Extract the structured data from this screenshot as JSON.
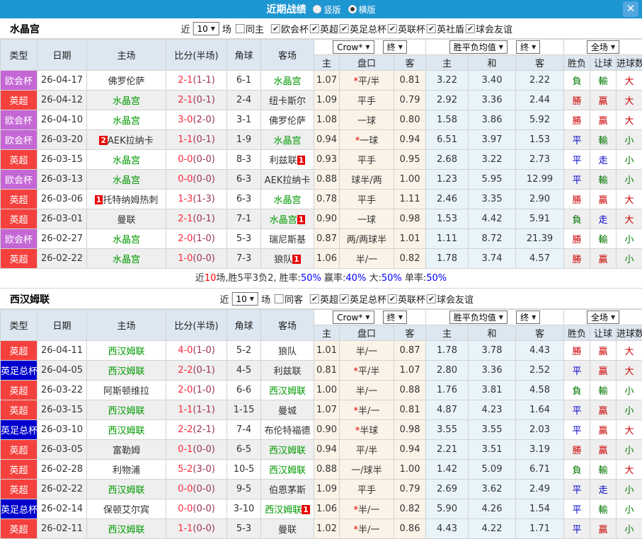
{
  "titlebar": {
    "title": "近期战绩",
    "radio_vertical": "竖版",
    "radio_horizontal": "横版"
  },
  "glyphs": {
    "dd_arrow": "▼",
    "check": "✔",
    "close": "✕"
  },
  "colors": {
    "accent_bar": "#1e96d2",
    "type": {
      "purple": "#c566d5",
      "red": "#f5413d",
      "blue": "#0101cd"
    },
    "result": {
      "r": "#cc0000",
      "g": "#007700",
      "b": "#0000cc"
    },
    "team_green": "#009900",
    "score_ft": "#fd2a3c",
    "score_ht": "#993355"
  },
  "table_header": {
    "col_type": "类型",
    "col_date": "日期",
    "col_home": "主场",
    "col_score": "比分(半场)",
    "col_corner": "角球",
    "col_away": "客场",
    "dd_crow": "Crow*",
    "dd_final1": "终",
    "dd_avg": "胜平负均值",
    "dd_final2": "终",
    "dd_fulltime": "全场",
    "sub_home": "主",
    "sub_handicap": "盘口",
    "sub_away": "客",
    "sub_ehome": "主",
    "sub_draw": "和",
    "sub_eaway": "客",
    "col_result": "胜负",
    "col_handicap_result": "让球",
    "col_goals": "进球数"
  },
  "sections": [
    {
      "team": "水晶宫",
      "filter": {
        "near": "近",
        "count": "10",
        "games": "场",
        "same": "同主",
        "same_checked": false,
        "leagues": [
          "欧会杯",
          "英超",
          "英足总杯",
          "英联杯",
          "英社盾",
          "球会友谊"
        ]
      },
      "rows": [
        {
          "type": "欧会杯",
          "tc": "purple",
          "date": "26-04-17",
          "home": {
            "name": "佛罗伦萨",
            "green": false,
            "badge": ""
          },
          "ft": "2-1",
          "ht": "(1-1)",
          "corner": "6-1",
          "away": {
            "name": "水晶宫",
            "green": true,
            "badge": ""
          },
          "asian": [
            "1.07",
            "*平/半",
            "0.81"
          ],
          "euro": [
            "3.22",
            "3.40",
            "2.22"
          ],
          "results": [
            [
              "負",
              "g"
            ],
            [
              "輸",
              "g"
            ],
            [
              "大",
              "r"
            ]
          ]
        },
        {
          "type": "英超",
          "tc": "red",
          "date": "26-04-12",
          "home": {
            "name": "水晶宫",
            "green": true,
            "badge": ""
          },
          "ft": "2-1",
          "ht": "(0-1)",
          "corner": "2-4",
          "away": {
            "name": "纽卡斯尔",
            "green": false,
            "badge": ""
          },
          "asian": [
            "1.09",
            "平手",
            "0.79"
          ],
          "euro": [
            "2.92",
            "3.36",
            "2.44"
          ],
          "results": [
            [
              "勝",
              "r"
            ],
            [
              "贏",
              "r"
            ],
            [
              "大",
              "r"
            ]
          ]
        },
        {
          "type": "欧会杯",
          "tc": "purple",
          "date": "26-04-10",
          "home": {
            "name": "水晶宫",
            "green": true,
            "badge": ""
          },
          "ft": "3-0",
          "ht": "(2-0)",
          "corner": "3-1",
          "away": {
            "name": "佛罗伦萨",
            "green": false,
            "badge": ""
          },
          "asian": [
            "1.08",
            "一球",
            "0.80"
          ],
          "euro": [
            "1.58",
            "3.86",
            "5.92"
          ],
          "results": [
            [
              "勝",
              "r"
            ],
            [
              "贏",
              "r"
            ],
            [
              "大",
              "r"
            ]
          ]
        },
        {
          "type": "欧会杯",
          "tc": "purple",
          "date": "26-03-20",
          "home": {
            "name": "AEK拉纳卡",
            "green": false,
            "badge": "2"
          },
          "ft": "1-1",
          "ht": "(0-1)",
          "corner": "1-9",
          "away": {
            "name": "水晶宫",
            "green": true,
            "badge": ""
          },
          "asian": [
            "0.94",
            "*一球",
            "0.94"
          ],
          "euro": [
            "6.51",
            "3.97",
            "1.53"
          ],
          "results": [
            [
              "平",
              "b"
            ],
            [
              "輸",
              "g"
            ],
            [
              "小",
              "g"
            ]
          ]
        },
        {
          "type": "英超",
          "tc": "red",
          "date": "26-03-15",
          "home": {
            "name": "水晶宫",
            "green": true,
            "badge": ""
          },
          "ft": "0-0",
          "ht": "(0-0)",
          "corner": "8-3",
          "away": {
            "name": "利兹联",
            "green": false,
            "badge": "1"
          },
          "asian": [
            "0.93",
            "平手",
            "0.95"
          ],
          "euro": [
            "2.68",
            "3.22",
            "2.73"
          ],
          "results": [
            [
              "平",
              "b"
            ],
            [
              "走",
              "b"
            ],
            [
              "小",
              "g"
            ]
          ]
        },
        {
          "type": "欧会杯",
          "tc": "purple",
          "date": "26-03-13",
          "home": {
            "name": "水晶宫",
            "green": true,
            "badge": ""
          },
          "ft": "0-0",
          "ht": "(0-0)",
          "corner": "6-3",
          "away": {
            "name": "AEK拉纳卡",
            "green": false,
            "badge": ""
          },
          "asian": [
            "0.88",
            "球半/两",
            "1.00"
          ],
          "euro": [
            "1.23",
            "5.95",
            "12.99"
          ],
          "results": [
            [
              "平",
              "b"
            ],
            [
              "輸",
              "g"
            ],
            [
              "小",
              "g"
            ]
          ]
        },
        {
          "type": "英超",
          "tc": "red",
          "date": "26-03-06",
          "home": {
            "name": "托特纳姆热刺",
            "green": false,
            "badge": "1"
          },
          "ft": "1-3",
          "ht": "(1-3)",
          "corner": "6-3",
          "away": {
            "name": "水晶宫",
            "green": true,
            "badge": ""
          },
          "asian": [
            "0.78",
            "平手",
            "1.11"
          ],
          "euro": [
            "2.46",
            "3.35",
            "2.90"
          ],
          "results": [
            [
              "勝",
              "r"
            ],
            [
              "贏",
              "r"
            ],
            [
              "大",
              "r"
            ]
          ]
        },
        {
          "type": "英超",
          "tc": "red",
          "date": "26-03-01",
          "home": {
            "name": "曼联",
            "green": false,
            "badge": ""
          },
          "ft": "2-1",
          "ht": "(0-1)",
          "corner": "7-1",
          "away": {
            "name": "水晶宫",
            "green": true,
            "badge": "1"
          },
          "asian": [
            "0.90",
            "一球",
            "0.98"
          ],
          "euro": [
            "1.53",
            "4.42",
            "5.91"
          ],
          "results": [
            [
              "負",
              "g"
            ],
            [
              "走",
              "b"
            ],
            [
              "大",
              "r"
            ]
          ]
        },
        {
          "type": "欧会杯",
          "tc": "purple",
          "date": "26-02-27",
          "home": {
            "name": "水晶宫",
            "green": true,
            "badge": ""
          },
          "ft": "2-0",
          "ht": "(1-0)",
          "corner": "5-3",
          "away": {
            "name": "瑞尼斯基",
            "green": false,
            "badge": ""
          },
          "asian": [
            "0.87",
            "两/两球半",
            "1.01"
          ],
          "euro": [
            "1.11",
            "8.72",
            "21.39"
          ],
          "results": [
            [
              "勝",
              "r"
            ],
            [
              "輸",
              "g"
            ],
            [
              "小",
              "g"
            ]
          ]
        },
        {
          "type": "英超",
          "tc": "red",
          "date": "26-02-22",
          "home": {
            "name": "水晶宫",
            "green": true,
            "badge": ""
          },
          "ft": "1-0",
          "ht": "(0-0)",
          "corner": "7-3",
          "away": {
            "name": "狼队",
            "green": false,
            "badge": "1"
          },
          "asian": [
            "1.06",
            "半/一",
            "0.82"
          ],
          "euro": [
            "1.78",
            "3.74",
            "4.57"
          ],
          "results": [
            [
              "勝",
              "r"
            ],
            [
              "贏",
              "r"
            ],
            [
              "小",
              "g"
            ]
          ]
        }
      ],
      "summary_parts": [
        [
          "近",
          "k"
        ],
        [
          "10",
          "r"
        ],
        [
          "场,胜5平3负2, 胜率:",
          "k"
        ],
        [
          "50%",
          "b"
        ],
        [
          " 赢率:",
          "k"
        ],
        [
          "40%",
          "b"
        ],
        [
          " 大:",
          "k"
        ],
        [
          "50%",
          "b"
        ],
        [
          " 单率:",
          "k"
        ],
        [
          "50%",
          "b"
        ]
      ]
    },
    {
      "team": "西汉姆联",
      "filter": {
        "near": "近",
        "count": "10",
        "games": "场",
        "same": "同客",
        "same_checked": false,
        "leagues": [
          "英超",
          "英足总杯",
          "英联杯",
          "球会友谊"
        ]
      },
      "rows": [
        {
          "type": "英超",
          "tc": "red",
          "date": "26-04-11",
          "home": {
            "name": "西汉姆联",
            "green": true,
            "badge": ""
          },
          "ft": "4-0",
          "ht": "(1-0)",
          "corner": "5-2",
          "away": {
            "name": "狼队",
            "green": false,
            "badge": ""
          },
          "asian": [
            "1.01",
            "半/一",
            "0.87"
          ],
          "euro": [
            "1.78",
            "3.78",
            "4.43"
          ],
          "results": [
            [
              "勝",
              "r"
            ],
            [
              "贏",
              "r"
            ],
            [
              "大",
              "r"
            ]
          ]
        },
        {
          "type": "英足总杯",
          "tc": "blue",
          "date": "26-04-05",
          "home": {
            "name": "西汉姆联",
            "green": true,
            "badge": ""
          },
          "ft": "2-2",
          "ht": "(0-1)",
          "corner": "4-5",
          "away": {
            "name": "利兹联",
            "green": false,
            "badge": ""
          },
          "asian": [
            "0.81",
            "*平/半",
            "1.07"
          ],
          "euro": [
            "2.80",
            "3.36",
            "2.52"
          ],
          "results": [
            [
              "平",
              "b"
            ],
            [
              "贏",
              "r"
            ],
            [
              "大",
              "r"
            ]
          ]
        },
        {
          "type": "英超",
          "tc": "red",
          "date": "26-03-22",
          "home": {
            "name": "阿斯顿维拉",
            "green": false,
            "badge": ""
          },
          "ft": "2-0",
          "ht": "(1-0)",
          "corner": "6-6",
          "away": {
            "name": "西汉姆联",
            "green": true,
            "badge": ""
          },
          "asian": [
            "1.00",
            "半/一",
            "0.88"
          ],
          "euro": [
            "1.76",
            "3.81",
            "4.58"
          ],
          "results": [
            [
              "負",
              "g"
            ],
            [
              "輸",
              "g"
            ],
            [
              "小",
              "g"
            ]
          ]
        },
        {
          "type": "英超",
          "tc": "red",
          "date": "26-03-15",
          "home": {
            "name": "西汉姆联",
            "green": true,
            "badge": ""
          },
          "ft": "1-1",
          "ht": "(1-1)",
          "corner": "1-15",
          "away": {
            "name": "曼城",
            "green": false,
            "badge": ""
          },
          "asian": [
            "1.07",
            "*半/一",
            "0.81"
          ],
          "euro": [
            "4.87",
            "4.23",
            "1.64"
          ],
          "results": [
            [
              "平",
              "b"
            ],
            [
              "贏",
              "r"
            ],
            [
              "小",
              "g"
            ]
          ]
        },
        {
          "type": "英足总杯",
          "tc": "blue",
          "date": "26-03-10",
          "home": {
            "name": "西汉姆联",
            "green": true,
            "badge": ""
          },
          "ft": "2-2",
          "ht": "(2-1)",
          "corner": "7-4",
          "away": {
            "name": "布伦特福德",
            "green": false,
            "badge": ""
          },
          "asian": [
            "0.90",
            "*半球",
            "0.98"
          ],
          "euro": [
            "3.55",
            "3.55",
            "2.03"
          ],
          "results": [
            [
              "平",
              "b"
            ],
            [
              "贏",
              "r"
            ],
            [
              "大",
              "r"
            ]
          ]
        },
        {
          "type": "英超",
          "tc": "red",
          "date": "26-03-05",
          "home": {
            "name": "富勒姆",
            "green": false,
            "badge": ""
          },
          "ft": "0-1",
          "ht": "(0-0)",
          "corner": "6-5",
          "away": {
            "name": "西汉姆联",
            "green": true,
            "badge": ""
          },
          "asian": [
            "0.94",
            "平/半",
            "0.94"
          ],
          "euro": [
            "2.21",
            "3.51",
            "3.19"
          ],
          "results": [
            [
              "勝",
              "r"
            ],
            [
              "贏",
              "r"
            ],
            [
              "小",
              "g"
            ]
          ]
        },
        {
          "type": "英超",
          "tc": "red",
          "date": "26-02-28",
          "home": {
            "name": "利物浦",
            "green": false,
            "badge": ""
          },
          "ft": "5-2",
          "ht": "(3-0)",
          "corner": "10-5",
          "away": {
            "name": "西汉姆联",
            "green": true,
            "badge": ""
          },
          "asian": [
            "0.88",
            "一/球半",
            "1.00"
          ],
          "euro": [
            "1.42",
            "5.09",
            "6.71"
          ],
          "results": [
            [
              "負",
              "g"
            ],
            [
              "輸",
              "g"
            ],
            [
              "大",
              "r"
            ]
          ]
        },
        {
          "type": "英超",
          "tc": "red",
          "date": "26-02-22",
          "home": {
            "name": "西汉姆联",
            "green": true,
            "badge": ""
          },
          "ft": "0-0",
          "ht": "(0-0)",
          "corner": "9-5",
          "away": {
            "name": "伯恩茅斯",
            "green": false,
            "badge": ""
          },
          "asian": [
            "1.09",
            "平手",
            "0.79"
          ],
          "euro": [
            "2.69",
            "3.62",
            "2.49"
          ],
          "results": [
            [
              "平",
              "b"
            ],
            [
              "走",
              "b"
            ],
            [
              "小",
              "g"
            ]
          ]
        },
        {
          "type": "英足总杯",
          "tc": "blue",
          "date": "26-02-14",
          "home": {
            "name": "保顿艾尔宾",
            "green": false,
            "badge": ""
          },
          "ft": "0-0",
          "ht": "(0-0)",
          "corner": "3-10",
          "away": {
            "name": "西汉姆联",
            "green": true,
            "badge": "1"
          },
          "asian": [
            "1.06",
            "*半/一",
            "0.82"
          ],
          "euro": [
            "5.90",
            "4.26",
            "1.54"
          ],
          "results": [
            [
              "平",
              "b"
            ],
            [
              "輸",
              "g"
            ],
            [
              "小",
              "g"
            ]
          ]
        },
        {
          "type": "英超",
          "tc": "red",
          "date": "26-02-11",
          "home": {
            "name": "西汉姆联",
            "green": true,
            "badge": ""
          },
          "ft": "1-1",
          "ht": "(0-0)",
          "corner": "5-3",
          "away": {
            "name": "曼联",
            "green": false,
            "badge": ""
          },
          "asian": [
            "1.02",
            "*半/一",
            "0.86"
          ],
          "euro": [
            "4.43",
            "4.22",
            "1.71"
          ],
          "results": [
            [
              "平",
              "b"
            ],
            [
              "贏",
              "r"
            ],
            [
              "小",
              "g"
            ]
          ]
        }
      ]
    }
  ]
}
